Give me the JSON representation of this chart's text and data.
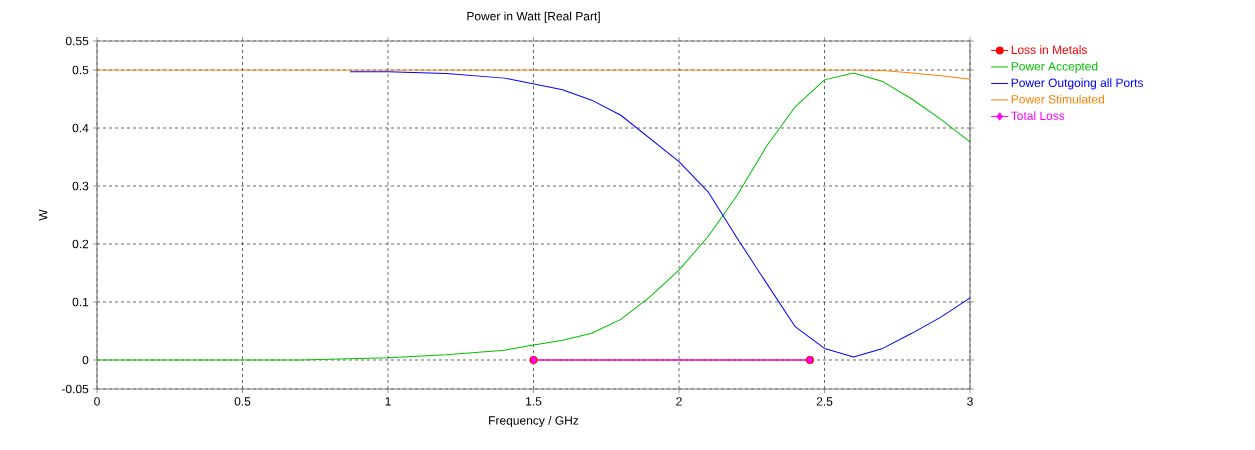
{
  "chart_data": {
    "type": "line",
    "title": "Power in Watt [Real Part]",
    "xlabel": "Frequency / GHz",
    "ylabel": "W",
    "xlim": [
      0,
      3
    ],
    "xticks": [
      0,
      0.5,
      1,
      1.5,
      2,
      2.5,
      3
    ],
    "ylim": [
      -0.05,
      0.55
    ],
    "yticks": [
      -0.05,
      0,
      0.1,
      0.2,
      0.3,
      0.4,
      0.5,
      0.55
    ],
    "grid": true,
    "legend": "right",
    "series": [
      {
        "name": "Loss in Metals",
        "color": "#ff0000",
        "marker": "circle",
        "x": [
          1.5,
          2.45
        ],
        "values": [
          0,
          0
        ]
      },
      {
        "name": "Power Accepted",
        "color": "#00c000",
        "marker": "none",
        "x": [
          0,
          0.7,
          1.0,
          1.2,
          1.4,
          1.5,
          1.6,
          1.7,
          1.8,
          1.9,
          2.0,
          2.1,
          2.2,
          2.3,
          2.4,
          2.5,
          2.6,
          2.7,
          2.8,
          2.9,
          3.0
        ],
        "values": [
          0,
          0,
          0.004,
          0.009,
          0.017,
          0.026,
          0.034,
          0.046,
          0.07,
          0.109,
          0.155,
          0.213,
          0.284,
          0.368,
          0.437,
          0.483,
          0.495,
          0.48,
          0.45,
          0.415,
          0.376
        ]
      },
      {
        "name": "Power Outgoing all Ports",
        "color": "#0000ff",
        "marker": "none",
        "x": [
          0.87,
          1.0,
          1.2,
          1.4,
          1.5,
          1.6,
          1.7,
          1.8,
          1.9,
          2.0,
          2.1,
          2.2,
          2.3,
          2.4,
          2.5,
          2.6,
          2.7,
          2.8,
          2.9,
          3.0
        ],
        "values": [
          0.497,
          0.497,
          0.494,
          0.486,
          0.476,
          0.466,
          0.448,
          0.422,
          0.382,
          0.342,
          0.29,
          0.21,
          0.133,
          0.057,
          0.02,
          0.005,
          0.02,
          0.046,
          0.074,
          0.107
        ]
      },
      {
        "name": "Power Stimulated",
        "color": "#ff8000",
        "marker": "none",
        "x": [
          0,
          2.6,
          2.7,
          2.8,
          2.9,
          3.0
        ],
        "values": [
          0.5,
          0.5,
          0.499,
          0.495,
          0.49,
          0.484
        ]
      },
      {
        "name": "Total Loss",
        "color": "#ff00ff",
        "marker": "diamond",
        "x": [
          1.5,
          2.45
        ],
        "values": [
          0,
          0
        ]
      }
    ]
  }
}
